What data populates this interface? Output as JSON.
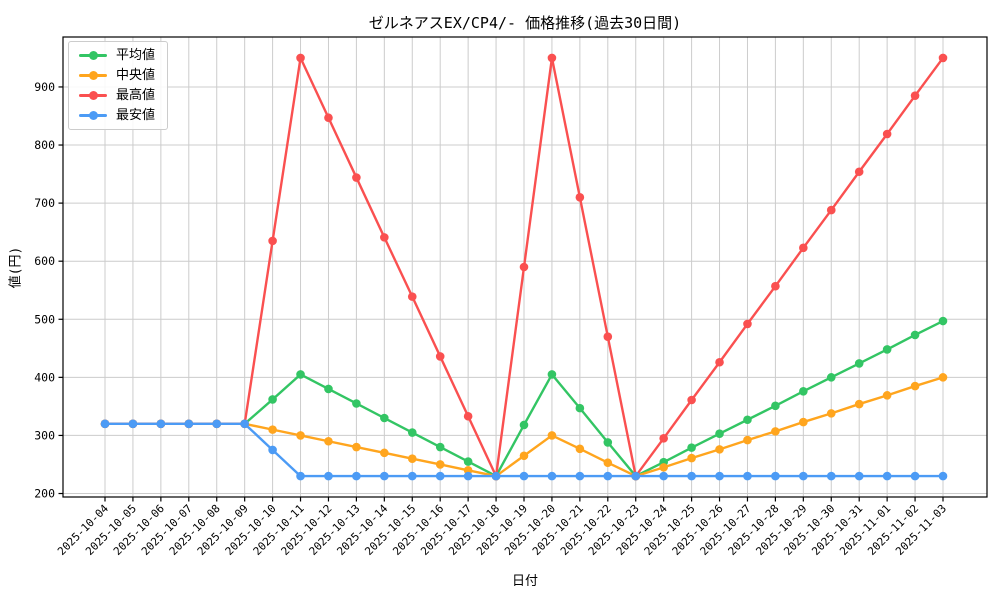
{
  "chart_data": {
    "type": "line",
    "title": "ゼルネアスEX/CP4/- 価格推移(過去30日間)",
    "xlabel": "日付",
    "ylabel": "値(円)",
    "grid": true,
    "legend_position": "upper left",
    "ylim": [
      194,
      986
    ],
    "yticks": [
      200,
      300,
      400,
      500,
      600,
      700,
      800,
      900
    ],
    "x": [
      "2025-10-04",
      "2025-10-05",
      "2025-10-06",
      "2025-10-07",
      "2025-10-08",
      "2025-10-09",
      "2025-10-10",
      "2025-10-11",
      "2025-10-12",
      "2025-10-13",
      "2025-10-14",
      "2025-10-15",
      "2025-10-16",
      "2025-10-17",
      "2025-10-18",
      "2025-10-19",
      "2025-10-20",
      "2025-10-21",
      "2025-10-22",
      "2025-10-23",
      "2025-10-24",
      "2025-10-25",
      "2025-10-26",
      "2025-10-27",
      "2025-10-28",
      "2025-10-29",
      "2025-10-30",
      "2025-10-31",
      "2025-11-01",
      "2025-11-02",
      "2025-11-03"
    ],
    "series": [
      {
        "name": "平均値",
        "color": "#33c564",
        "values": [
          320,
          320,
          320,
          320,
          320,
          320,
          362,
          405,
          380,
          355,
          330,
          305,
          280,
          255,
          230,
          318,
          405,
          347,
          288,
          230,
          254,
          279,
          303,
          327,
          351,
          376,
          400,
          424,
          448,
          473,
          497
        ]
      },
      {
        "name": "中央値",
        "color": "#ffa51e",
        "values": [
          320,
          320,
          320,
          320,
          320,
          320,
          310,
          300,
          290,
          280,
          270,
          260,
          250,
          240,
          230,
          265,
          300,
          277,
          253,
          230,
          245,
          261,
          276,
          292,
          307,
          323,
          338,
          354,
          369,
          385,
          400
        ]
      },
      {
        "name": "最高値",
        "color": "#fa5050",
        "values": [
          320,
          320,
          320,
          320,
          320,
          320,
          635,
          950,
          847,
          744,
          641,
          539,
          436,
          333,
          230,
          590,
          950,
          710,
          470,
          230,
          295,
          361,
          426,
          492,
          557,
          623,
          688,
          754,
          819,
          885,
          950
        ]
      },
      {
        "name": "最安値",
        "color": "#4c9bf5",
        "values": [
          320,
          320,
          320,
          320,
          320,
          320,
          275,
          230,
          230,
          230,
          230,
          230,
          230,
          230,
          230,
          230,
          230,
          230,
          230,
          230,
          230,
          230,
          230,
          230,
          230,
          230,
          230,
          230,
          230,
          230,
          230
        ]
      }
    ],
    "colors": {
      "grid": "#cccccc",
      "spine": "#000000",
      "background": "#ffffff"
    }
  }
}
